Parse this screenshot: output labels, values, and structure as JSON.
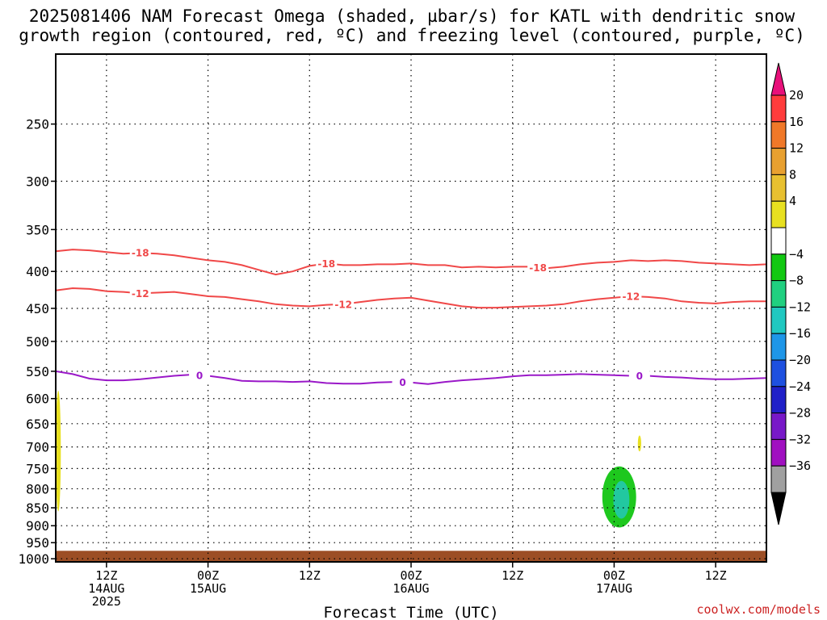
{
  "title": {
    "line1": "2025081406 NAM Forecast Omega (shaded, µbar/s) for KATL with dendritic snow",
    "line2": "growth region (contoured, red, ºC) and freezing level (contoured, purple, ºC)"
  },
  "credit": "coolwx.com/models",
  "colors": {
    "dgz_contour": "#f04848",
    "freezing_contour": "#9a18c8",
    "ground": "#9c4e25",
    "positive_omega": "#e8e020",
    "negative_omega_light": "#1ec81e",
    "negative_omega_dark": "#22c8a0",
    "grid": "#000000"
  },
  "chart_data": {
    "type": "contour",
    "title": "2025081406 NAM Forecast Omega (shaded, µbar/s) for KATL with dendritic snow growth region (contoured, red, ºC) and freezing level (contoured, purple, ºC)",
    "xlabel": "Forecast Time (UTC)",
    "ylabel": "",
    "x_unit": "hours since 2025-08-14 06Z",
    "xlim": [
      0,
      84
    ],
    "ylim": [
      200,
      1010
    ],
    "y_scale": "log-pressure (inverted)",
    "grid": true,
    "y_ticks": [
      250,
      300,
      350,
      400,
      450,
      500,
      550,
      600,
      650,
      700,
      750,
      800,
      850,
      900,
      950,
      1000
    ],
    "x_ticks": [
      {
        "hour": 6,
        "label1": "12Z",
        "label2": "14AUG",
        "label3": "2025"
      },
      {
        "hour": 18,
        "label1": "00Z",
        "label2": "15AUG",
        "label3": ""
      },
      {
        "hour": 30,
        "label1": "12Z",
        "label2": "",
        "label3": ""
      },
      {
        "hour": 42,
        "label1": "00Z",
        "label2": "16AUG",
        "label3": ""
      },
      {
        "hour": 54,
        "label1": "12Z",
        "label2": "",
        "label3": ""
      },
      {
        "hour": 66,
        "label1": "00Z",
        "label2": "17AUG",
        "label3": ""
      },
      {
        "hour": 78,
        "label1": "12Z",
        "label2": "",
        "label3": ""
      }
    ],
    "colorbar": {
      "levels": [
        "20",
        "16",
        "12",
        "8",
        "4",
        "−4",
        "−8",
        "−12",
        "−16",
        "−20",
        "−24",
        "−28",
        "−32",
        "−36"
      ],
      "colors": [
        "#ff3c3c",
        "#f07828",
        "#e8a030",
        "#e8c030",
        "#e8e020",
        "#ffffff",
        "#12c812",
        "#20d080",
        "#20c8c0",
        "#1e96e8",
        "#1e50e0",
        "#2020c8",
        "#7818c8",
        "#a010c0",
        "#a0a0a0",
        "#000000"
      ],
      "over_color": "#e8107a",
      "under_color": "#000000"
    },
    "series": [
      {
        "name": "-18",
        "label": "-18",
        "label_positions": [
          10,
          32,
          57
        ],
        "x": [
          0,
          2,
          4,
          6,
          8,
          10,
          12,
          14,
          16,
          18,
          20,
          22,
          24,
          26,
          28,
          30,
          32,
          34,
          36,
          38,
          40,
          42,
          44,
          46,
          48,
          50,
          52,
          54,
          56,
          58,
          60,
          62,
          64,
          66,
          68,
          70,
          72,
          74,
          76,
          78,
          80,
          82,
          84
        ],
        "y": [
          375,
          373,
          374,
          376,
          378,
          377,
          378,
          380,
          383,
          386,
          388,
          392,
          398,
          404,
          400,
          393,
          390,
          392,
          392,
          391,
          391,
          390,
          392,
          392,
          395,
          394,
          395,
          394,
          394,
          396,
          394,
          391,
          389,
          388,
          386,
          387,
          386,
          387,
          389,
          390,
          391,
          392,
          391
        ]
      },
      {
        "name": "-12",
        "label": "-12",
        "label_positions": [
          10,
          34,
          68
        ],
        "x": [
          0,
          2,
          4,
          6,
          8,
          10,
          12,
          14,
          16,
          18,
          20,
          22,
          24,
          26,
          28,
          30,
          32,
          34,
          36,
          38,
          40,
          42,
          44,
          46,
          48,
          50,
          52,
          54,
          56,
          58,
          60,
          62,
          64,
          66,
          68,
          70,
          72,
          74,
          76,
          78,
          80,
          82,
          84
        ],
        "y": [
          425,
          422,
          423,
          426,
          427,
          429,
          428,
          427,
          430,
          433,
          434,
          437,
          440,
          444,
          446,
          447,
          445,
          444,
          441,
          438,
          436,
          435,
          439,
          443,
          447,
          449,
          449,
          448,
          447,
          446,
          444,
          440,
          437,
          435,
          433,
          434,
          436,
          440,
          442,
          443,
          441,
          440,
          440
        ]
      },
      {
        "name": "0",
        "label": "0",
        "label_positions": [
          17,
          41,
          69
        ],
        "x": [
          0,
          2,
          4,
          6,
          8,
          10,
          12,
          14,
          16,
          18,
          20,
          22,
          24,
          26,
          28,
          30,
          32,
          34,
          36,
          38,
          40,
          42,
          44,
          46,
          48,
          50,
          52,
          54,
          56,
          58,
          60,
          62,
          64,
          66,
          68,
          70,
          72,
          74,
          76,
          78,
          80,
          82,
          84
        ],
        "y": [
          550,
          555,
          563,
          566,
          566,
          564,
          561,
          558,
          556,
          558,
          562,
          567,
          568,
          568,
          569,
          568,
          571,
          572,
          572,
          570,
          569,
          570,
          573,
          569,
          566,
          564,
          562,
          559,
          557,
          557,
          556,
          555,
          556,
          557,
          558,
          558,
          560,
          561,
          563,
          564,
          564,
          563,
          562
        ]
      }
    ],
    "shaded_regions": [
      {
        "name": "positive omega",
        "value_range": "4 to 8",
        "x_range": [
          0,
          0.6
        ],
        "y_range": [
          585,
          860
        ]
      },
      {
        "name": "positive omega",
        "value_range": "4 to 8",
        "x_range": [
          68.8,
          69.2
        ],
        "y_range": [
          675,
          710
        ]
      },
      {
        "name": "negative omega",
        "value_range": "-4 to -8",
        "x_range": [
          64.6,
          68.6
        ],
        "y_range": [
          745,
          905
        ]
      },
      {
        "name": "negative omega",
        "value_range": "-8 to -12",
        "x_range": [
          65.9,
          67.8
        ],
        "y_range": [
          780,
          880
        ]
      },
      {
        "name": "below ground",
        "x_range": [
          0,
          84
        ],
        "y_range": [
          975,
          1010
        ]
      }
    ]
  }
}
